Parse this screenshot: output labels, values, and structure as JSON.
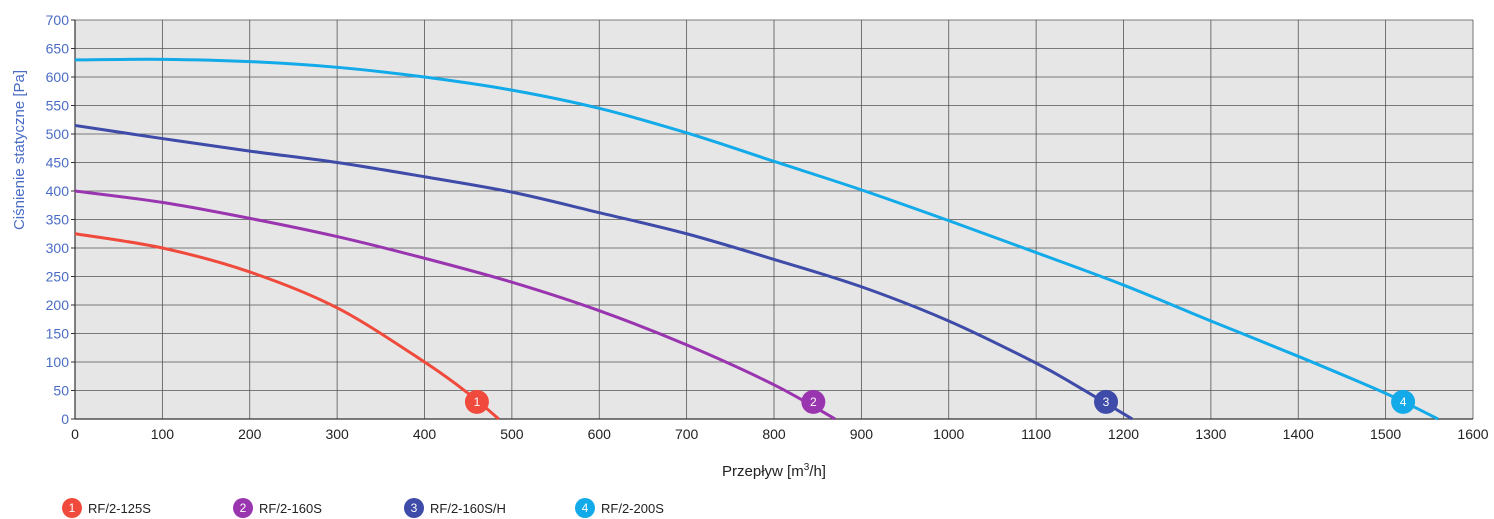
{
  "chart_data": {
    "type": "line",
    "xlabel_parts": [
      "Przepływ [m",
      "3",
      "/h]"
    ],
    "ylabel": "Ciśnienie statyczne [Pa]",
    "xlim": [
      0,
      1600
    ],
    "ylim": [
      0,
      700
    ],
    "xticks": [
      0,
      100,
      200,
      300,
      400,
      500,
      600,
      700,
      800,
      900,
      1000,
      1100,
      1200,
      1300,
      1400,
      1500,
      1600
    ],
    "yticks": [
      0,
      50,
      100,
      150,
      200,
      250,
      300,
      350,
      400,
      450,
      500,
      550,
      600,
      650,
      700
    ],
    "grid": true,
    "legend_position": "bottom-left",
    "series": [
      {
        "name": "RF/2-125S",
        "marker_label": "1",
        "color": "#f04a3c",
        "marker": [
          460,
          30
        ],
        "x": [
          0,
          100,
          200,
          300,
          400,
          450,
          485
        ],
        "y": [
          325,
          300,
          258,
          195,
          100,
          45,
          0
        ]
      },
      {
        "name": "RF/2-160S",
        "marker_label": "2",
        "color": "#9a35b0",
        "marker": [
          845,
          30
        ],
        "x": [
          0,
          100,
          200,
          300,
          400,
          500,
          600,
          700,
          800,
          870
        ],
        "y": [
          400,
          380,
          352,
          320,
          282,
          240,
          190,
          130,
          60,
          0
        ]
      },
      {
        "name": "RF/2-160S/H",
        "marker_label": "3",
        "color": "#3e4ba8",
        "marker": [
          1180,
          30
        ],
        "x": [
          0,
          100,
          200,
          300,
          400,
          500,
          600,
          700,
          800,
          900,
          1000,
          1100,
          1150,
          1210
        ],
        "y": [
          515,
          492,
          470,
          450,
          425,
          398,
          362,
          325,
          280,
          232,
          172,
          98,
          55,
          0
        ]
      },
      {
        "name": "RF/2-200S",
        "marker_label": "4",
        "color": "#12aae8",
        "marker": [
          1520,
          30
        ],
        "x": [
          0,
          100,
          200,
          300,
          400,
          500,
          600,
          700,
          800,
          900,
          1000,
          1100,
          1200,
          1300,
          1400,
          1500,
          1560
        ],
        "y": [
          630,
          631,
          627,
          617,
          600,
          577,
          545,
          502,
          452,
          402,
          348,
          292,
          235,
          172,
          110,
          45,
          0
        ]
      }
    ]
  }
}
